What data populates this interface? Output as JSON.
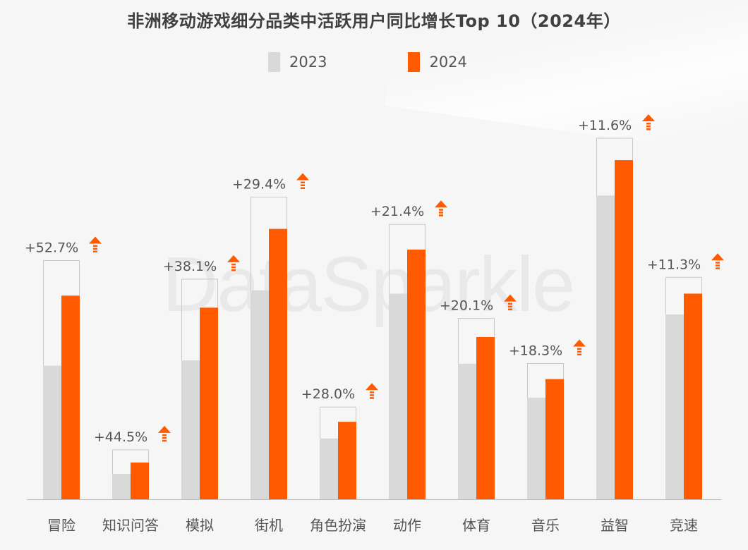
{
  "title": "非洲移动游戏细分品类中活跃用户同比增长Top 10（2024年）",
  "watermark": "DataSparkle",
  "legend": [
    {
      "label": "2023",
      "color": "#d9d9d9"
    },
    {
      "label": "2024",
      "color": "#ff5a00"
    }
  ],
  "colors": {
    "accent": "#ff5a00",
    "prior": "#d9d9d9",
    "arrow": "#ff5a00"
  },
  "chart_data": {
    "type": "bar",
    "categories": [
      "冒险",
      "知识问答",
      "模拟",
      "街机",
      "角色扮演",
      "动作",
      "体育",
      "音乐",
      "益智",
      "竞速"
    ],
    "series": [
      {
        "name": "2023",
        "values": [
          200,
          38,
          208,
          313,
          91,
          308,
          203,
          152,
          455,
          277
        ]
      },
      {
        "name": "2024",
        "values": [
          305,
          55,
          287,
          405,
          116,
          374,
          243,
          180,
          508,
          308
        ]
      }
    ],
    "growth_labels": [
      "+52.7%",
      "+44.5%",
      "+38.1%",
      "+29.4%",
      "+28.0%",
      "+21.4%",
      "+20.1%",
      "+18.3%",
      "+11.6%",
      "+11.3%"
    ],
    "ylim": [
      0,
      600
    ],
    "grid": false,
    "legend_position": "top"
  }
}
